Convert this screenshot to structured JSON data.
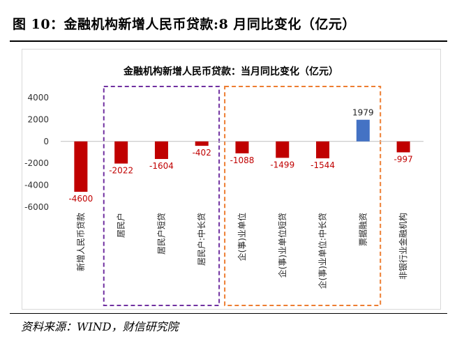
{
  "figure": {
    "title": "图 10：金融机构新增人民币贷款:8 月同比变化（亿元）",
    "source": "资料来源：WIND，财信研究院"
  },
  "colors": {
    "negative": "#c00000",
    "positive": "#4472c4",
    "box_purple": "#7030a0",
    "box_orange": "#ed7d31"
  },
  "chart_data": {
    "type": "bar",
    "title": "金融机构新增人民币贷款：当月同比变化（亿元）",
    "xlabel": "",
    "ylabel": "",
    "ylim": [
      -6000,
      4000
    ],
    "yticks": [
      "4000",
      "2000",
      "0",
      "-2000",
      "-4000",
      "-6000"
    ],
    "grid": false,
    "categories": [
      "新增人民币贷款",
      "居民户",
      "居民户短贷",
      "居民户:中长贷",
      "企(事)业单位",
      "企(事)业单位短贷",
      "企(事)业单位:中长贷",
      "票据融资",
      "非银行业金融机构"
    ],
    "values": [
      -4600,
      -2022,
      -1604,
      -402,
      -1088,
      -1499,
      -1544,
      1979,
      -997
    ],
    "value_labels": [
      "-4600",
      "-2022",
      "-1604",
      "-402",
      "-1088",
      "-1499",
      "-1544",
      "1979",
      "-997"
    ],
    "groups": [
      {
        "name": "household",
        "members": [
          1,
          3
        ],
        "style": "dashed",
        "color": "purple"
      },
      {
        "name": "enterprise",
        "members": [
          4,
          7
        ],
        "style": "dashed",
        "color": "orange"
      }
    ]
  }
}
